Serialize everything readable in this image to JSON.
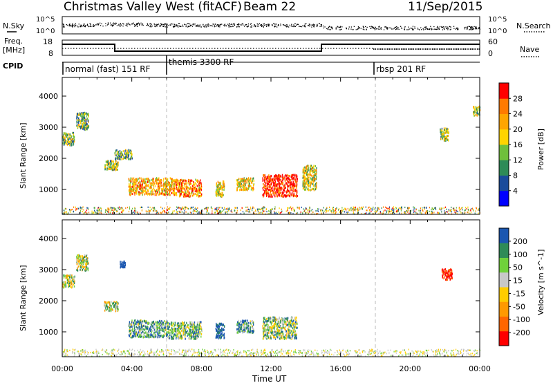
{
  "header": {
    "station": "Christmas Valley West (fitACF)",
    "beam": "Beam 22",
    "date": "11/Sep/2015"
  },
  "side_labels": {
    "nsky": "N.Sky",
    "nsearch": "N.Search",
    "freq_line1": "Freq.",
    "freq_line2": "[MHz]",
    "nave": "Nave",
    "cpid": "CPID"
  },
  "noise_axis": {
    "left_ticks": [
      "10^5",
      "10^0"
    ],
    "right_ticks": [
      "10^5",
      "10^0"
    ]
  },
  "freq_axis": {
    "left_ticks": [
      "18",
      "8"
    ],
    "right_ticks": [
      "60",
      "0"
    ]
  },
  "cpid_labels": [
    {
      "text": "normal (fast) 151 RF",
      "start_hour": 0
    },
    {
      "text": "themis 3300 RF",
      "start_hour": 6
    },
    {
      "text": "rbsp 201 RF",
      "start_hour": 18
    }
  ],
  "time_axis": {
    "label": "Time UT",
    "ticks": [
      "00:00",
      "04:00",
      "08:00",
      "12:00",
      "16:00",
      "20:00",
      "00:00"
    ]
  },
  "colors": {
    "power_scale": [
      "#0000ff",
      "#1a4b9b",
      "#2e8b57",
      "#6fbf3c",
      "#ffd400",
      "#ffa500",
      "#ff7a00",
      "#ff0000"
    ],
    "velocity_scale": [
      "#ff0000",
      "#ff6600",
      "#ff9900",
      "#ffcc00",
      "#c8c8c8",
      "#6fd13a",
      "#2e8b57",
      "#1a56b0"
    ]
  },
  "chart_data": [
    {
      "type": "heatmap",
      "name": "power",
      "ylabel": "Slant Range [km]",
      "yticks": [
        1000,
        2000,
        3000,
        4000
      ],
      "xlim": [
        0,
        24
      ],
      "ylim": [
        200,
        4600
      ],
      "colorbar": {
        "label": "Power [dB]",
        "ticks": [
          "28",
          "24",
          "20",
          "16",
          "12",
          "8",
          "4"
        ],
        "range": [
          0,
          30
        ]
      },
      "regions": [
        {
          "t0": 0.8,
          "t1": 1.5,
          "r0": 2950,
          "r1": 3500,
          "v": 12
        },
        {
          "t0": 0.0,
          "t1": 0.7,
          "r0": 2450,
          "r1": 2850,
          "v": 12
        },
        {
          "t0": 2.4,
          "t1": 3.2,
          "r0": 1650,
          "r1": 1950,
          "v": 14
        },
        {
          "t0": 3.0,
          "t1": 4.0,
          "r0": 2000,
          "r1": 2300,
          "v": 12
        },
        {
          "t0": 3.8,
          "t1": 6.3,
          "r0": 850,
          "r1": 1400,
          "v": 20
        },
        {
          "t0": 6.3,
          "t1": 8.0,
          "r0": 800,
          "r1": 1350,
          "v": 22
        },
        {
          "t0": 8.8,
          "t1": 9.3,
          "r0": 800,
          "r1": 1300,
          "v": 18
        },
        {
          "t0": 10.0,
          "t1": 11.0,
          "r0": 1000,
          "r1": 1400,
          "v": 18
        },
        {
          "t0": 11.5,
          "t1": 13.5,
          "r0": 800,
          "r1": 1500,
          "v": 28
        },
        {
          "t0": 13.8,
          "t1": 14.6,
          "r0": 1000,
          "r1": 1800,
          "v": 16
        },
        {
          "t0": 21.7,
          "t1": 22.2,
          "r0": 2600,
          "r1": 3000,
          "v": 14
        },
        {
          "t0": 23.6,
          "t1": 24.0,
          "r0": 3400,
          "r1": 3700,
          "v": 14
        }
      ]
    },
    {
      "type": "heatmap",
      "name": "velocity",
      "ylabel": "Slant Range [km]",
      "yticks": [
        1000,
        2000,
        3000,
        4000
      ],
      "xlim": [
        0,
        24
      ],
      "ylim": [
        200,
        4600
      ],
      "colorbar": {
        "label": "Velocity [m s^-1]",
        "ticks": [
          "200",
          "100",
          "50",
          "15",
          "-15",
          "-50",
          "-100",
          "-200"
        ],
        "range": [
          -250,
          250
        ]
      },
      "regions": [
        {
          "t0": 0.0,
          "t1": 0.7,
          "r0": 2450,
          "r1": 2850,
          "v": 0
        },
        {
          "t0": 0.8,
          "t1": 1.5,
          "r0": 3000,
          "r1": 3500,
          "v": 0
        },
        {
          "t0": 2.4,
          "t1": 3.2,
          "r0": 1700,
          "r1": 2000,
          "v": 0
        },
        {
          "t0": 3.3,
          "t1": 3.6,
          "r0": 3100,
          "r1": 3300,
          "v": 220
        },
        {
          "t0": 3.8,
          "t1": 6.0,
          "r0": 850,
          "r1": 1400,
          "v": 60
        },
        {
          "t0": 6.0,
          "t1": 8.0,
          "r0": 800,
          "r1": 1350,
          "v": 40
        },
        {
          "t0": 8.8,
          "t1": 9.3,
          "r0": 800,
          "r1": 1300,
          "v": 150
        },
        {
          "t0": 10.0,
          "t1": 11.0,
          "r0": 1000,
          "r1": 1400,
          "v": 60
        },
        {
          "t0": 11.5,
          "t1": 13.5,
          "r0": 800,
          "r1": 1500,
          "v": 30
        },
        {
          "t0": 21.8,
          "t1": 22.4,
          "r0": 2700,
          "r1": 3050,
          "v": -220
        }
      ]
    }
  ]
}
